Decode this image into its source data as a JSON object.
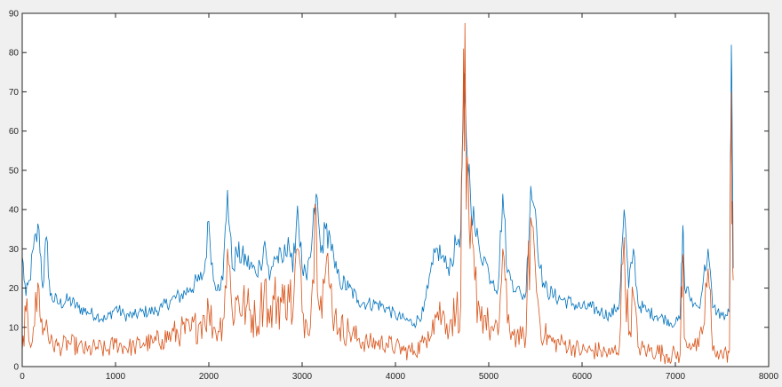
{
  "chart_data": {
    "type": "line",
    "title": "",
    "xlabel": "",
    "ylabel": "",
    "xlim": [
      0,
      8000
    ],
    "ylim": [
      0,
      90
    ],
    "xticks": [
      0,
      1000,
      2000,
      3000,
      4000,
      5000,
      6000,
      7000,
      8000
    ],
    "yticks": [
      0,
      10,
      20,
      30,
      40,
      50,
      60,
      70,
      80,
      90
    ],
    "xtick_labels": [
      "0",
      "1000",
      "2000",
      "3000",
      "4000",
      "5000",
      "6000",
      "7000",
      "8000"
    ],
    "ytick_labels": [
      "0",
      "10",
      "20",
      "30",
      "40",
      "50",
      "60",
      "70",
      "80",
      "90"
    ],
    "grid": false,
    "legend": "none",
    "background_color": "#ffffff",
    "figure_color": "#f0f0f0",
    "series": [
      {
        "color": "#0072bd",
        "x": [
          0,
          40,
          80,
          120,
          180,
          220,
          260,
          300,
          400,
          500,
          600,
          700,
          800,
          900,
          1000,
          1100,
          1200,
          1300,
          1400,
          1500,
          1600,
          1700,
          1800,
          1900,
          1950,
          2000,
          2050,
          2100,
          2150,
          2200,
          2250,
          2300,
          2400,
          2500,
          2550,
          2600,
          2650,
          2700,
          2800,
          2850,
          2900,
          2950,
          3000,
          3050,
          3100,
          3150,
          3200,
          3250,
          3300,
          3350,
          3400,
          3500,
          3600,
          3700,
          3800,
          3900,
          4000,
          4100,
          4200,
          4300,
          4350,
          4400,
          4450,
          4500,
          4550,
          4600,
          4650,
          4700,
          4730,
          4760,
          4800,
          4850,
          4900,
          4950,
          5000,
          5050,
          5100,
          5150,
          5200,
          5250,
          5300,
          5350,
          5400,
          5450,
          5500,
          5550,
          5600,
          5700,
          5800,
          5900,
          6000,
          6100,
          6200,
          6300,
          6400,
          6450,
          6500,
          6550,
          6600,
          6700,
          6800,
          6900,
          7000,
          7050,
          7080,
          7100,
          7150,
          7200,
          7250,
          7300,
          7350,
          7400,
          7450,
          7500,
          7550,
          7580,
          7600,
          7620
        ],
        "values": [
          28,
          18,
          22,
          30,
          35,
          20,
          33,
          18,
          16,
          17,
          15,
          14,
          13,
          12,
          15,
          13,
          13,
          14,
          14,
          15,
          17,
          18,
          20,
          22,
          24,
          37,
          22,
          21,
          22,
          45,
          25,
          29,
          27,
          24,
          26,
          32,
          22,
          28,
          27,
          33,
          24,
          41,
          25,
          22,
          30,
          44,
          29,
          35,
          33,
          25,
          22,
          20,
          17,
          16,
          16,
          15,
          13,
          12,
          11,
          14,
          20,
          26,
          30,
          28,
          25,
          27,
          31,
          35,
          70,
          58,
          46,
          35,
          30,
          28,
          24,
          22,
          20,
          44,
          24,
          22,
          20,
          18,
          19,
          46,
          40,
          25,
          20,
          18,
          17,
          16,
          15,
          15,
          14,
          13,
          16,
          40,
          20,
          30,
          16,
          14,
          13,
          12,
          11,
          12,
          36,
          20,
          18,
          16,
          15,
          22,
          30,
          15,
          14,
          13,
          13,
          14,
          82,
          25
        ]
      },
      {
        "color": "#d95319",
        "x": [
          0,
          40,
          80,
          120,
          180,
          220,
          260,
          300,
          400,
          500,
          600,
          700,
          800,
          900,
          1000,
          1100,
          1200,
          1300,
          1400,
          1500,
          1600,
          1700,
          1800,
          1900,
          1950,
          2000,
          2050,
          2100,
          2150,
          2200,
          2250,
          2300,
          2400,
          2500,
          2550,
          2600,
          2650,
          2700,
          2800,
          2850,
          2900,
          2950,
          3000,
          3050,
          3100,
          3150,
          3200,
          3250,
          3300,
          3350,
          3400,
          3500,
          3600,
          3700,
          3800,
          3900,
          4000,
          4100,
          4200,
          4300,
          4350,
          4400,
          4450,
          4500,
          4550,
          4600,
          4650,
          4700,
          4730,
          4760,
          4800,
          4850,
          4900,
          4950,
          5000,
          5050,
          5100,
          5150,
          5200,
          5250,
          5300,
          5350,
          5400,
          5450,
          5500,
          5550,
          5600,
          5700,
          5800,
          5900,
          6000,
          6100,
          6200,
          6300,
          6400,
          6450,
          6500,
          6550,
          6600,
          6700,
          6800,
          6900,
          7000,
          7050,
          7080,
          7100,
          7150,
          7200,
          7250,
          7300,
          7350,
          7400,
          7450,
          7500,
          7550,
          7580,
          7600,
          7620
        ],
        "values": [
          4,
          14,
          6,
          10,
          20,
          8,
          12,
          6,
          5,
          6,
          5,
          4,
          5,
          4,
          6,
          5,
          5,
          6,
          6,
          7,
          8,
          9,
          9,
          11,
          13,
          14,
          10,
          9,
          12,
          30,
          14,
          17,
          15,
          12,
          14,
          22,
          11,
          17,
          16,
          21,
          13,
          30,
          14,
          11,
          17,
          40,
          18,
          24,
          20,
          13,
          10,
          9,
          7,
          6,
          6,
          6,
          5,
          4,
          4,
          6,
          9,
          12,
          14,
          13,
          11,
          12,
          14,
          16,
          81,
          40,
          30,
          22,
          15,
          13,
          10,
          9,
          8,
          30,
          11,
          9,
          8,
          7,
          8,
          38,
          25,
          11,
          8,
          6,
          6,
          5,
          4,
          4,
          4,
          3,
          5,
          33,
          8,
          18,
          5,
          4,
          4,
          3,
          3,
          3,
          28,
          7,
          6,
          5,
          5,
          10,
          25,
          4,
          4,
          3,
          3,
          4,
          70,
          22
        ]
      }
    ]
  }
}
